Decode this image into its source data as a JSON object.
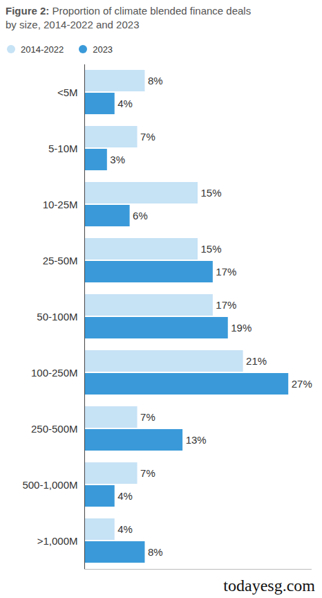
{
  "chart_data": {
    "type": "bar",
    "title": "Figure 2: Proportion of climate blended finance deals by size, 2014-2022 and 2023",
    "orientation": "horizontal",
    "categories": [
      "<5M",
      "5-10M",
      "10-25M",
      "25-50M",
      "50-100M",
      "100-250M",
      "250-500M",
      "500-1,000M",
      ">1,000M"
    ],
    "series": [
      {
        "name": "2014-2022",
        "color": "#c6e2f5",
        "values": [
          8,
          7,
          15,
          15,
          17,
          21,
          7,
          7,
          4
        ],
        "value_labels": [
          "8%",
          "7%",
          "15%",
          "15%",
          "17%",
          "21%",
          "7%",
          "7%",
          "4%"
        ]
      },
      {
        "name": "2023",
        "color": "#3a9ad9",
        "values": [
          4,
          3,
          6,
          17,
          19,
          27,
          13,
          4,
          8
        ],
        "value_labels": [
          "4%",
          "3%",
          "6%",
          "17%",
          "19%",
          "27%",
          "13%",
          "4%",
          "8%"
        ]
      }
    ],
    "xlim": [
      0,
      30
    ],
    "xticks": [],
    "grid": false,
    "legend": "top-left",
    "data_labels": true,
    "tick_labels": "y",
    "annotations": [
      "todayesg.com"
    ]
  }
}
